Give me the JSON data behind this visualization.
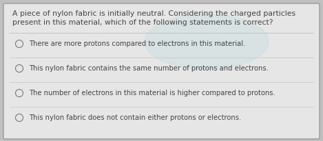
{
  "background_outer": "#c0c0c0",
  "background_inner": "#e6e6e6",
  "question_text_line1": "A piece of nylon fabric is initially neutral. Considering the charged particles",
  "question_text_line2": "present in this material, which of the following statements is correct?",
  "options": [
    "There are more protons compared to electrons in this material.",
    "This nylon fabric contains the same number of protons and electrons.",
    "The number of electrons in this material is higher compared to protons.",
    "This nylon fabric does not contain either protons or electrons."
  ],
  "divider_color": "#bbbbbb",
  "text_color": "#444444",
  "question_fontsize": 7.8,
  "option_fontsize": 7.2,
  "circle_edge_color": "#777777",
  "circle_face_color": "#e6e6e6",
  "highlight_color": "#a8d8d8",
  "border_color": "#999999"
}
